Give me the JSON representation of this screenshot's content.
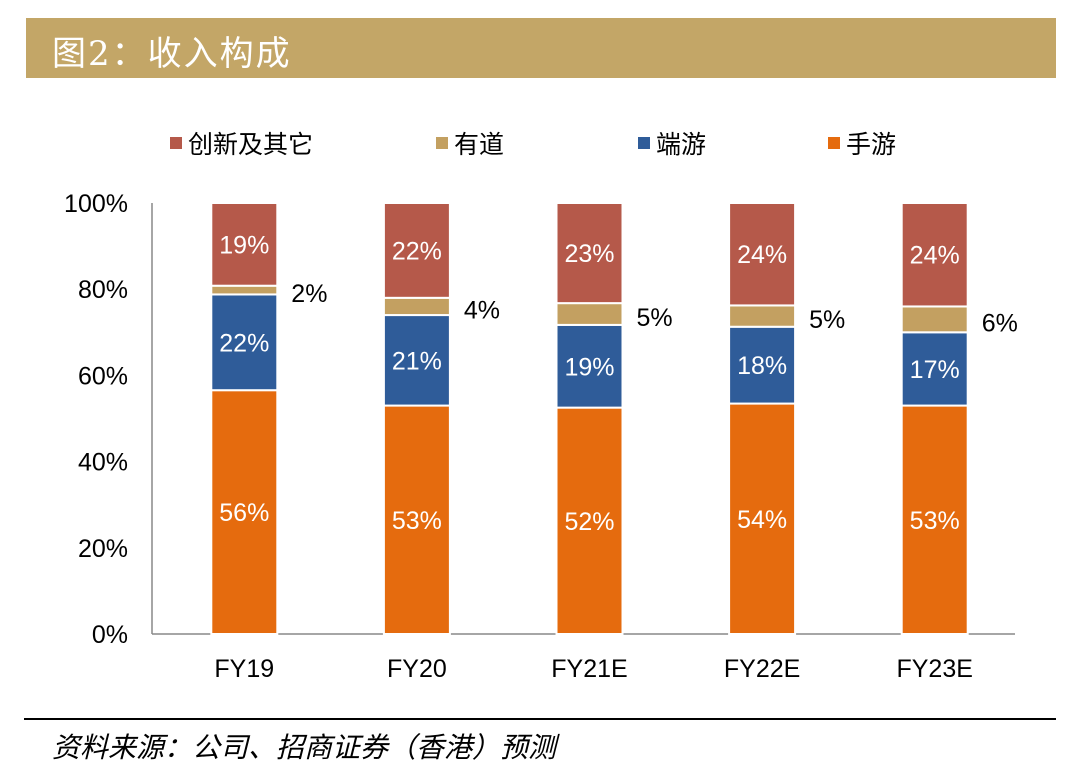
{
  "header": {
    "title": "图2：收入构成"
  },
  "footer": {
    "source": "资料来源：公司、招商证券（香港）预测"
  },
  "chart_data": {
    "type": "bar",
    "stacked": true,
    "categories": [
      "FY19",
      "FY20",
      "FY21E",
      "FY22E",
      "FY23E"
    ],
    "series": [
      {
        "name": "手游",
        "color": "#e56b0e",
        "values": [
          56,
          53,
          52,
          54,
          53
        ],
        "labels": [
          "56%",
          "53%",
          "52%",
          "54%",
          "53%"
        ]
      },
      {
        "name": "端游",
        "color": "#2f5c99",
        "values": [
          22,
          21,
          19,
          18,
          17
        ],
        "labels": [
          "22%",
          "21%",
          "19%",
          "18%",
          "17%"
        ]
      },
      {
        "name": "有道",
        "color": "#c3a061",
        "values": [
          2,
          4,
          5,
          5,
          6
        ],
        "labels": [
          "2%",
          "4%",
          "5%",
          "5%",
          "6%"
        ]
      },
      {
        "name": "创新及其它",
        "color": "#b5594a",
        "values": [
          19,
          22,
          23,
          24,
          24
        ],
        "labels": [
          "19%",
          "22%",
          "23%",
          "24%",
          "24%"
        ]
      }
    ],
    "legend_order": [
      "创新及其它",
      "有道",
      "端游",
      "手游"
    ],
    "ylim": [
      0,
      100
    ],
    "yticks": [
      "0%",
      "20%",
      "40%",
      "60%",
      "80%",
      "100%"
    ],
    "legend_position": "top",
    "grid": false
  }
}
